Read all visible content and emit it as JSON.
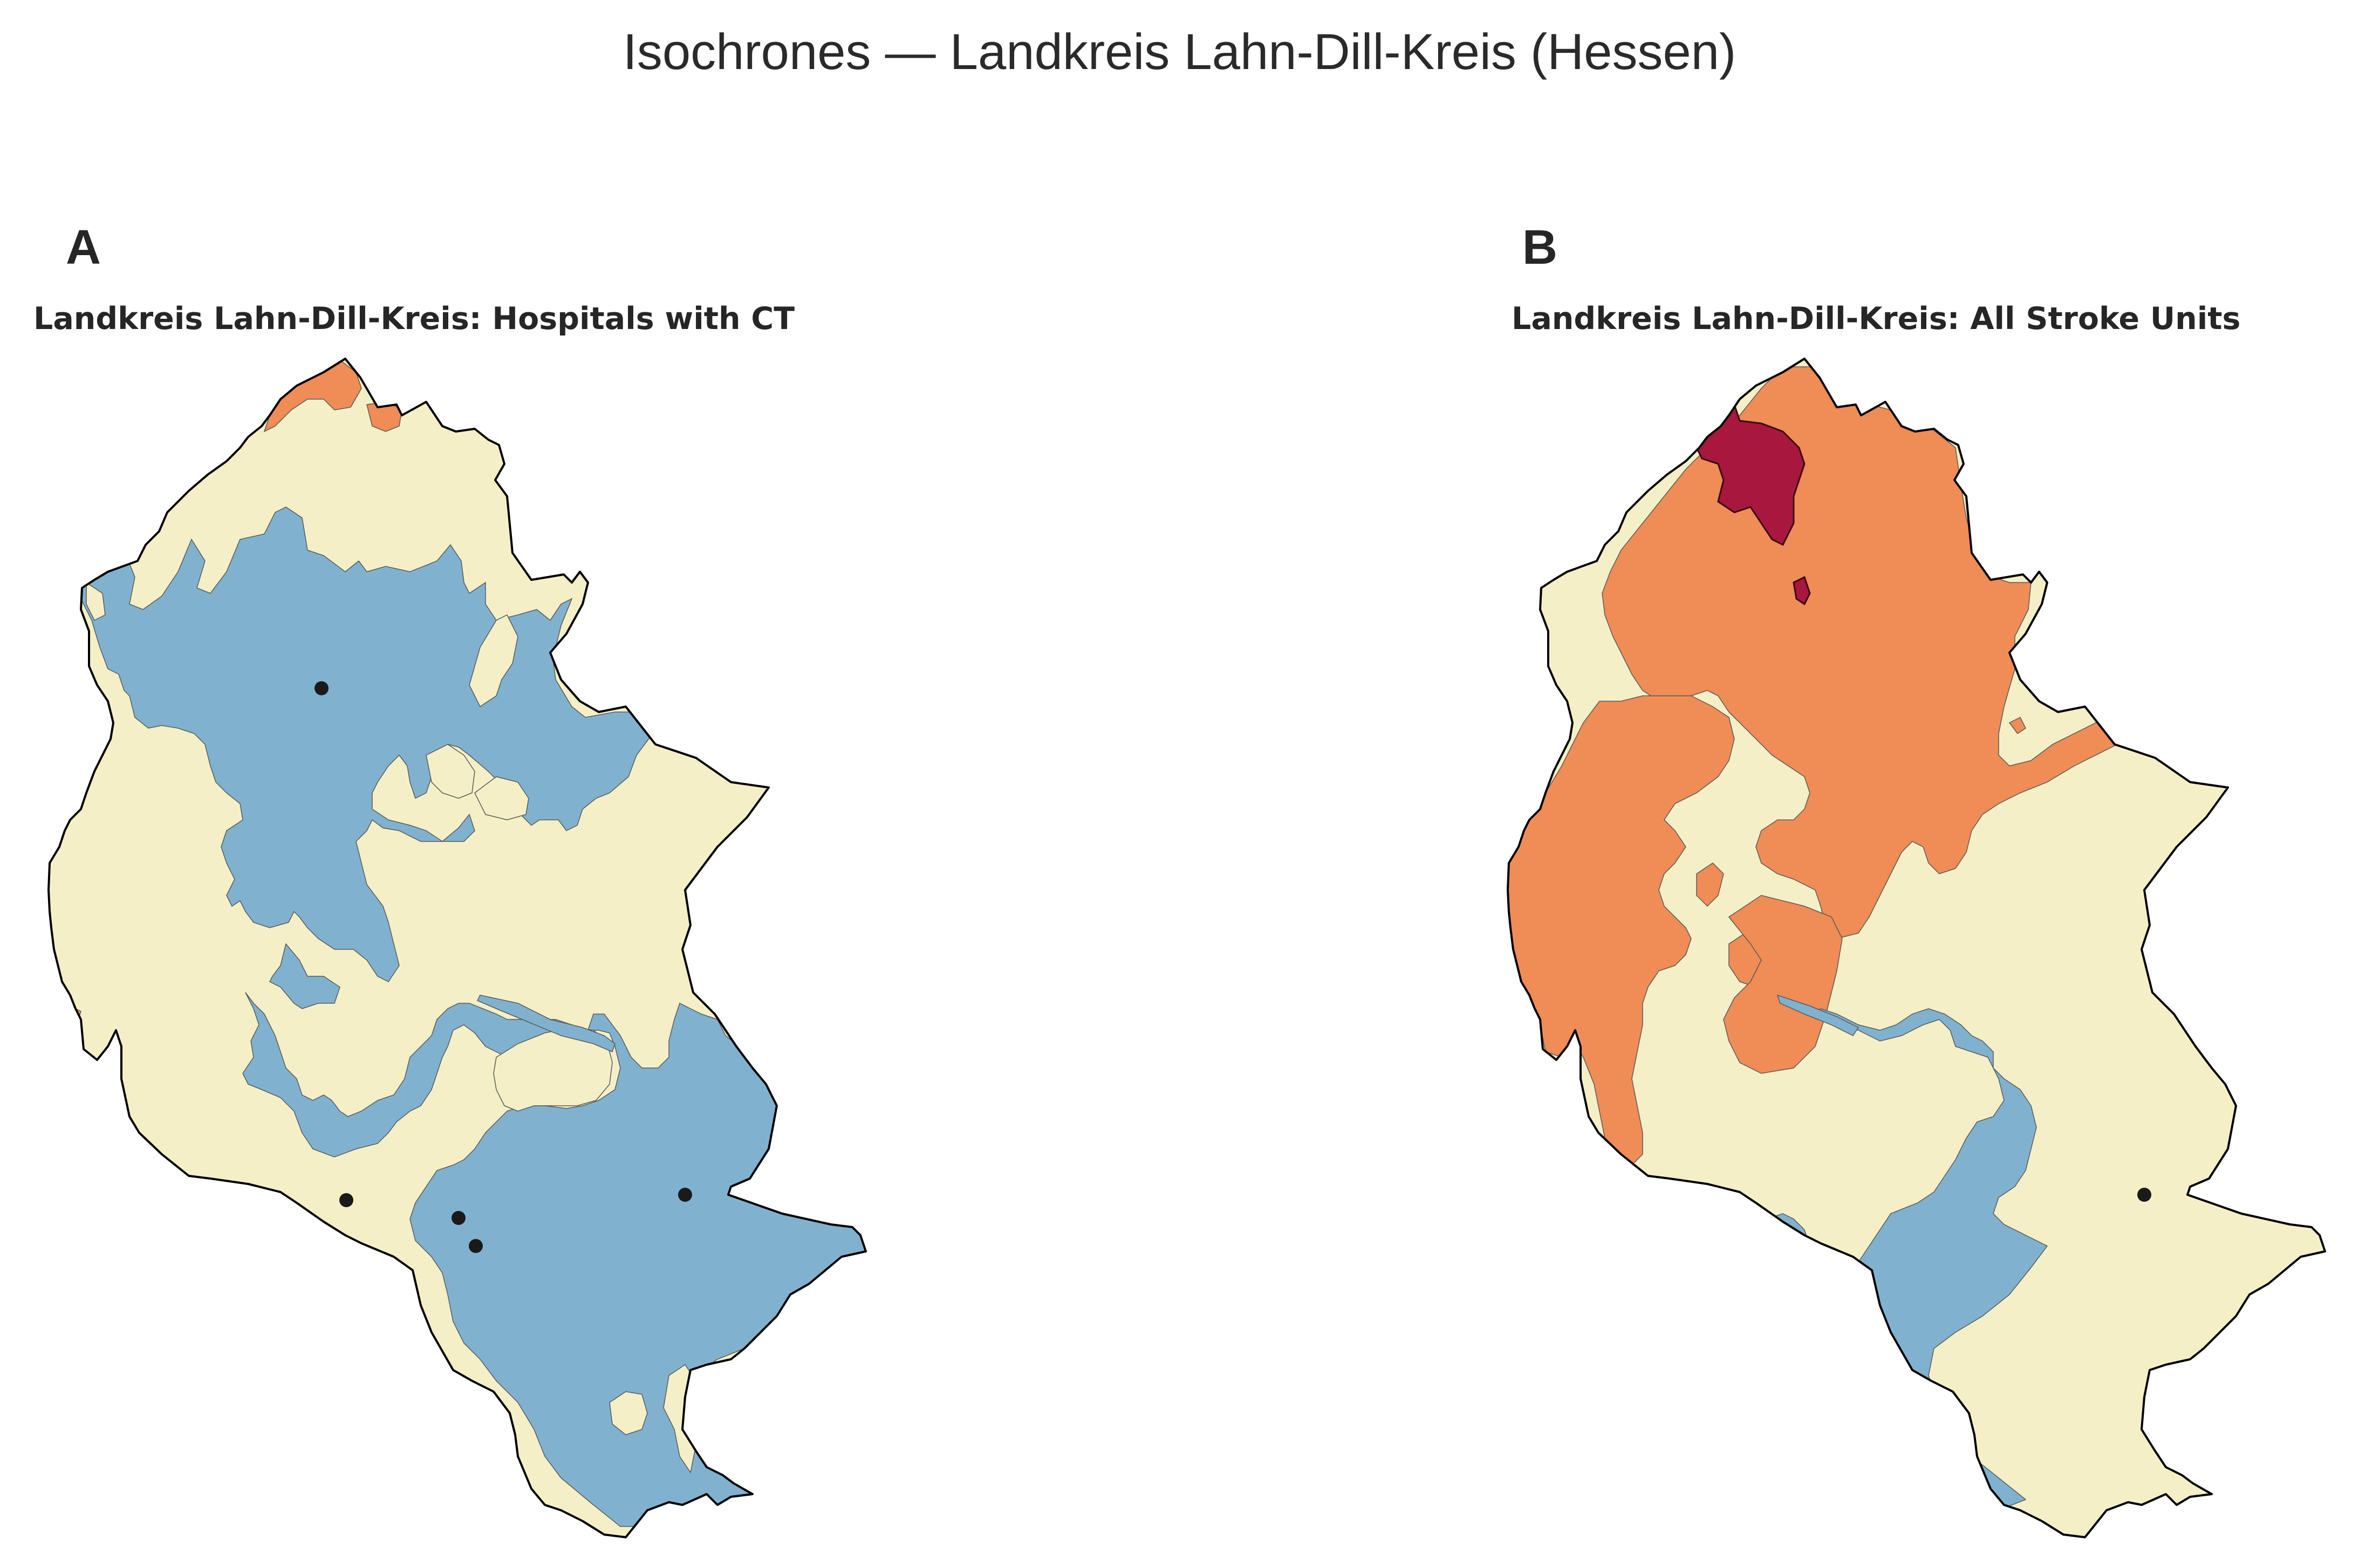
{
  "figure": {
    "title": "Isochrones — Landkreis Lahn-Dill-Kreis (Hessen)"
  },
  "colors": {
    "background": "#ffffff",
    "boundary": "#000000",
    "band_fastest": "#80b2d0",
    "band_medium": "#f4efc6",
    "band_slow": "#f08c56",
    "band_slowest": "#a8173e",
    "site_marker": "#1a1a1a"
  },
  "panels": [
    {
      "letter": "A",
      "title": "Landkreis Lahn-Dill-Kreis: Hospitals with CT",
      "facility_marker_count": 5,
      "bands_shown": [
        "band_fastest",
        "band_medium",
        "band_slow"
      ]
    },
    {
      "letter": "B",
      "title": "Landkreis Lahn-Dill-Kreis: All Stroke Units",
      "facility_marker_count": 1,
      "bands_shown": [
        "band_fastest",
        "band_medium",
        "band_slow",
        "band_slowest"
      ]
    }
  ]
}
